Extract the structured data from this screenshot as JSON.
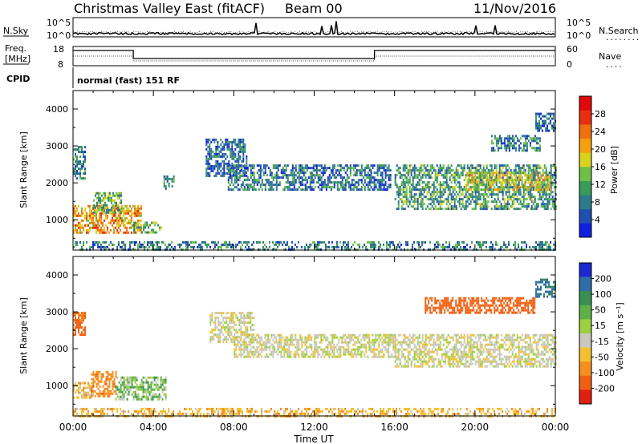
{
  "header": {
    "station": "Christmas Valley East (fitACF)",
    "beam": "Beam 00",
    "date": "11/Nov/2016"
  },
  "labels": {
    "nsky": "N.Sky",
    "nsearch": "N.Search",
    "freq_line1": "Freq.",
    "freq_line2": "[MHz]",
    "nave": "Nave",
    "cpid": "CPID",
    "cpid_value": "normal (fast) 151 RF",
    "dots": "........",
    "dots_short": "....",
    "noise_ticks_left": [
      "10^5",
      "10^0"
    ],
    "noise_ticks_right": [
      "10^5",
      "10^0"
    ],
    "freq_ticks_left": [
      "18",
      "8"
    ],
    "nave_ticks_right": [
      "60",
      "0"
    ]
  },
  "chart_data": [
    {
      "type": "heatmap",
      "title": "Power",
      "ylabel": "Slant Range [km]",
      "xlabel": "Time UT",
      "x_ticks": [
        "00:00",
        "04:00",
        "08:00",
        "12:00",
        "16:00",
        "20:00",
        "00:00"
      ],
      "y_ticks": [
        1000,
        2000,
        3000,
        4000
      ],
      "xlim_hours": [
        0,
        24
      ],
      "ylim": [
        180,
        4500
      ],
      "colorbar": {
        "label": "Power [dB]",
        "ticks": [
          "4",
          "8",
          "12",
          "16",
          "20",
          "24",
          "28"
        ],
        "colors": [
          "#1020e0",
          "#2050b0",
          "#2e7a8a",
          "#3a9a5a",
          "#6fbf4a",
          "#d9d320",
          "#f5a010",
          "#f07010",
          "#e83010",
          "#e00808"
        ]
      },
      "echo_regions": [
        {
          "t": [
            0.0,
            0.6
          ],
          "r": [
            2100,
            3000
          ],
          "value": 10
        },
        {
          "t": [
            0.0,
            3.4
          ],
          "r": [
            650,
            1400
          ],
          "value": 22
        },
        {
          "t": [
            1.0,
            2.4
          ],
          "r": [
            1200,
            1750
          ],
          "value": 14
        },
        {
          "t": [
            3.0,
            4.4
          ],
          "r": [
            650,
            950
          ],
          "value": 14
        },
        {
          "t": [
            4.5,
            5.0
          ],
          "r": [
            1850,
            2200
          ],
          "value": 10
        },
        {
          "t": [
            6.6,
            8.6
          ],
          "r": [
            2200,
            3200
          ],
          "value": 8
        },
        {
          "t": [
            7.7,
            14.8
          ],
          "r": [
            1800,
            2500
          ],
          "value": 9
        },
        {
          "t": [
            14.8,
            15.8
          ],
          "r": [
            1800,
            2500
          ],
          "value": 8
        },
        {
          "t": [
            16.0,
            24.0
          ],
          "r": [
            1300,
            2500
          ],
          "value": 12
        },
        {
          "t": [
            19.5,
            23.8
          ],
          "r": [
            1800,
            2300
          ],
          "value": 18
        },
        {
          "t": [
            20.8,
            23.2
          ],
          "r": [
            2900,
            3300
          ],
          "value": 10
        },
        {
          "t": [
            23.0,
            24.0
          ],
          "r": [
            3400,
            3900
          ],
          "value": 8
        },
        {
          "t": [
            0.0,
            24.0
          ],
          "r": [
            180,
            420
          ],
          "value": 10
        }
      ]
    },
    {
      "type": "heatmap",
      "title": "Velocity",
      "ylabel": "Slant Range [km]",
      "xlabel": "Time UT",
      "x_ticks": [
        "00:00",
        "04:00",
        "08:00",
        "12:00",
        "16:00",
        "20:00",
        "00:00"
      ],
      "y_ticks": [
        1000,
        2000,
        3000,
        4000
      ],
      "xlim_hours": [
        0,
        24
      ],
      "ylim": [
        180,
        4500
      ],
      "colorbar": {
        "label": "Velocity [m s⁻¹]",
        "ticks": [
          "200",
          "100",
          "50",
          "15",
          "-15",
          "-50",
          "-100",
          "-200"
        ],
        "colors": [
          "#1a2ad0",
          "#2f6ea8",
          "#3a9050",
          "#5fb048",
          "#9bd040",
          "#c8c8c0",
          "#f5c030",
          "#f59020",
          "#f06010",
          "#e02010"
        ]
      },
      "echo_regions": [
        {
          "t": [
            0.0,
            0.6
          ],
          "r": [
            2400,
            3000
          ],
          "value": -120
        },
        {
          "t": [
            0.0,
            1.0
          ],
          "r": [
            650,
            1100
          ],
          "value": -30
        },
        {
          "t": [
            0.9,
            2.1
          ],
          "r": [
            700,
            1400
          ],
          "value": -80
        },
        {
          "t": [
            2.1,
            4.6
          ],
          "r": [
            650,
            1250
          ],
          "value": 30
        },
        {
          "t": [
            6.8,
            9.0
          ],
          "r": [
            2200,
            3000
          ],
          "value": 0
        },
        {
          "t": [
            8.0,
            16.0
          ],
          "r": [
            1800,
            2400
          ],
          "value": 0
        },
        {
          "t": [
            16.0,
            24.0
          ],
          "r": [
            1500,
            2400
          ],
          "value": 0
        },
        {
          "t": [
            17.5,
            23.0
          ],
          "r": [
            3000,
            3400
          ],
          "value": -150
        },
        {
          "t": [
            23.0,
            24.0
          ],
          "r": [
            3400,
            3900
          ],
          "value": 120
        },
        {
          "t": [
            0.0,
            24.0
          ],
          "r": [
            180,
            400
          ],
          "value": -40
        }
      ]
    }
  ]
}
